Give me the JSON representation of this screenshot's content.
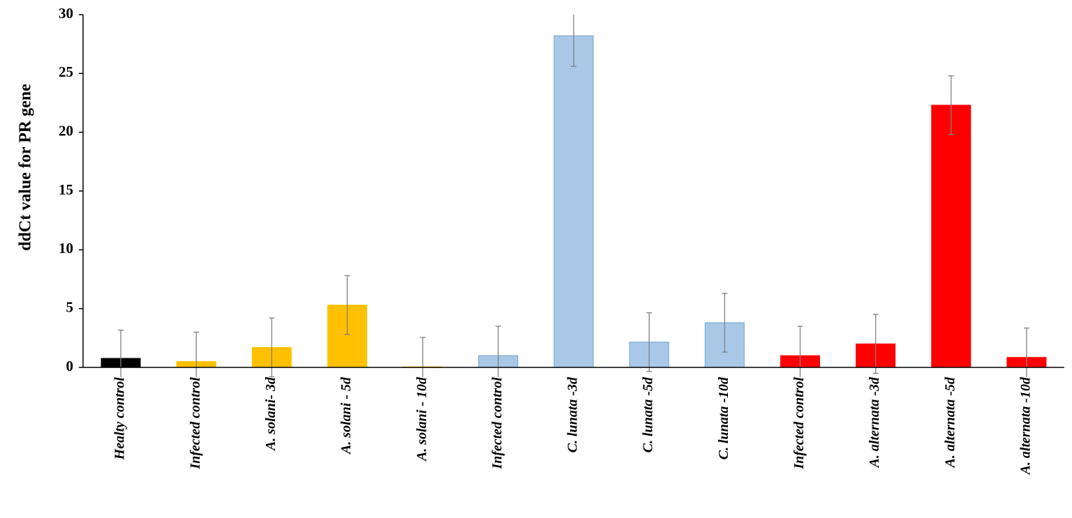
{
  "chart_data": {
    "type": "bar",
    "y_label": "ddCt value for PR gene",
    "categories": [
      "Healty control",
      "Infected control",
      "A. solani- 3d",
      "A. solani - 5d",
      "A. solani - 10d",
      "Infected control",
      "C. lunata -3d",
      "C. lunata -5d",
      "C. lunata -10d",
      "Infected control",
      "A. alternata -3d",
      "A. alternata -5d",
      "A. alternata -10d"
    ],
    "values": [
      0.77,
      0.5,
      1.7,
      5.3,
      0.05,
      1.0,
      28.2,
      2.15,
      3.8,
      1.0,
      2.0,
      22.3,
      0.85
    ],
    "errors": [
      2.4,
      2.5,
      2.5,
      2.5,
      2.5,
      2.5,
      2.6,
      2.5,
      2.5,
      2.5,
      2.5,
      2.5,
      2.5
    ],
    "colors": [
      "#000000",
      "#ffc000",
      "#ffc000",
      "#ffc000",
      "#ffc000",
      "#a9c8e8",
      "#a9c8e8",
      "#a9c8e8",
      "#a9c8e8",
      "#ff0000",
      "#ff0000",
      "#ff0000",
      "#ff0000"
    ],
    "ylim": [
      0,
      30
    ],
    "yticks": [
      0,
      5,
      10,
      15,
      20,
      25,
      30
    ]
  }
}
